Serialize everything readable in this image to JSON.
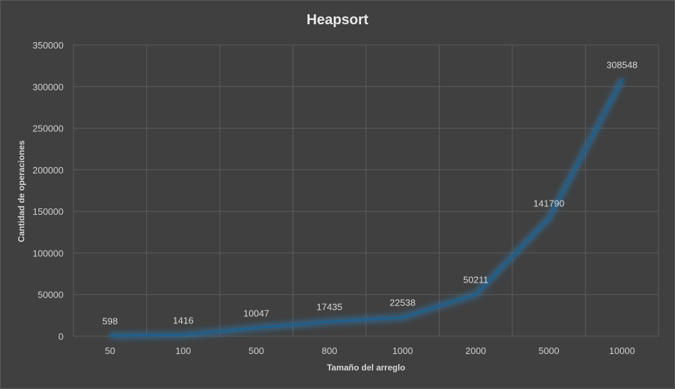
{
  "chart_data": {
    "type": "line",
    "title": "Heapsort",
    "xlabel": "Tamaño del arreglo",
    "ylabel": "Cantidad de operaciones",
    "categories": [
      "50",
      "100",
      "500",
      "800",
      "1000",
      "2000",
      "5000",
      "10000"
    ],
    "series": [
      {
        "values": [
          598,
          1416,
          10047,
          17435,
          22538,
          50211,
          141790,
          308548
        ],
        "color": "#1f5f8b"
      }
    ],
    "ylim": [
      0,
      350000
    ],
    "yticks": [
      0,
      50000,
      100000,
      150000,
      200000,
      250000,
      300000,
      350000
    ],
    "grid": true,
    "legend": "none",
    "colors": {
      "background": "#404040",
      "grid": "#5c5c5c",
      "line": "#1f5f8b",
      "glow": "#2a7fc0"
    }
  }
}
